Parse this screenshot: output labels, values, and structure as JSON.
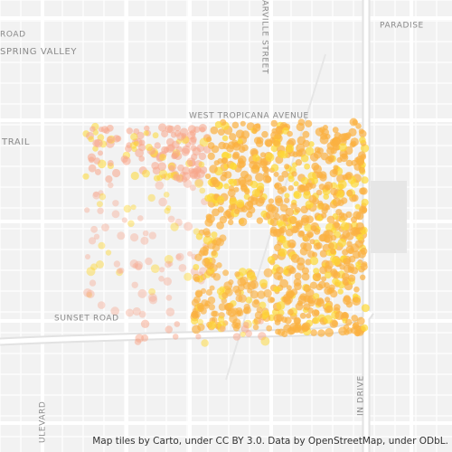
{
  "map_labels": {
    "paradise": "PARADISE",
    "spring_valley": "SPRING VALLEY",
    "road_top_left": "ROAD",
    "trail": "TRAIL",
    "west_tropicana": "WEST TROPICANA AVENUE",
    "maryland_street": "ARVILLE STREET",
    "sunset_road": "SUNSET ROAD",
    "boulevard": "ULEVARD",
    "drive": "IN DRIVE"
  },
  "attribution": "Map tiles by Carto, under CC BY 3.0. Data by OpenStreetMap, under ODbL."
}
